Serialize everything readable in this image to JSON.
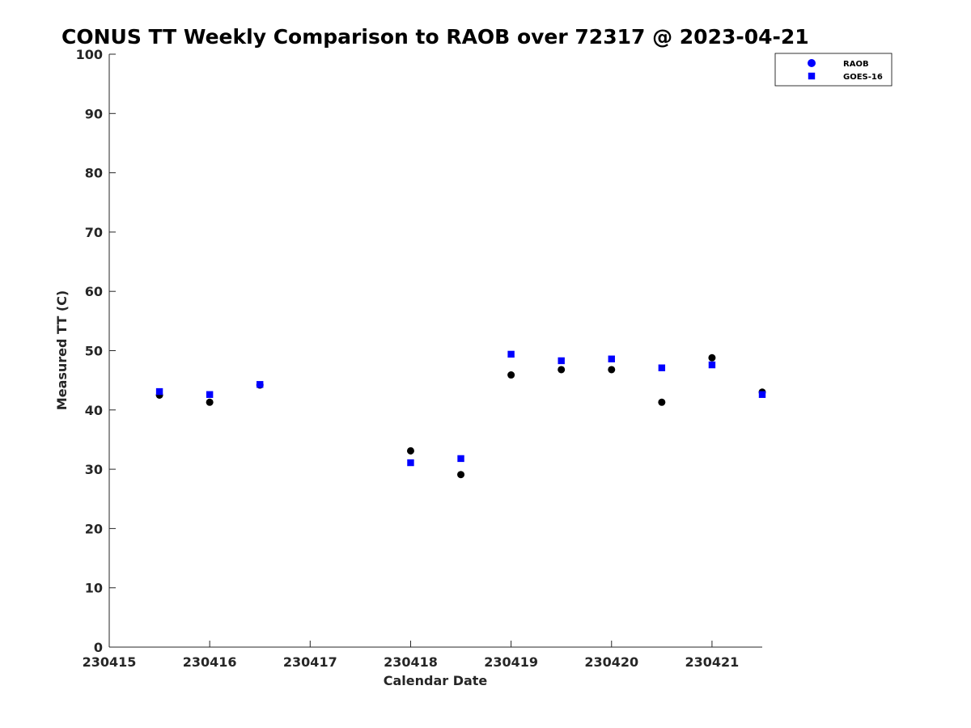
{
  "chart_data": {
    "type": "scatter",
    "title": "CONUS TT Weekly Comparison to RAOB over 72317 @ 2023-04-21",
    "xlabel": "Calendar Date",
    "ylabel": "Measured TT (C)",
    "x_ticks": [
      "230415",
      "230416",
      "230417",
      "230418",
      "230419",
      "230420",
      "230421"
    ],
    "y_ticks": [
      0,
      10,
      20,
      30,
      40,
      50,
      60,
      70,
      80,
      90,
      100
    ],
    "xlim": [
      "230415",
      "230421 12Z"
    ],
    "ylim": [
      0,
      100
    ],
    "grid": false,
    "legend_position": "top-right",
    "series": [
      {
        "name": "RAOB",
        "marker": "circle",
        "color": "#000000",
        "legend_color": "#0000ff",
        "points": [
          {
            "x": "230415 12Z",
            "y": 42.5
          },
          {
            "x": "230416 00Z",
            "y": 41.3
          },
          {
            "x": "230416 12Z",
            "y": 44.2
          },
          {
            "x": "230418 00Z",
            "y": 33.1
          },
          {
            "x": "230418 12Z",
            "y": 29.1
          },
          {
            "x": "230419 00Z",
            "y": 45.9
          },
          {
            "x": "230419 12Z",
            "y": 46.8
          },
          {
            "x": "230420 00Z",
            "y": 46.8
          },
          {
            "x": "230420 12Z",
            "y": 41.3
          },
          {
            "x": "230421 00Z",
            "y": 48.8
          },
          {
            "x": "230421 12Z",
            "y": 43.0
          }
        ]
      },
      {
        "name": "GOES-16",
        "marker": "square",
        "color": "#0000ff",
        "points": [
          {
            "x": "230415 12Z",
            "y": 43.1
          },
          {
            "x": "230416 00Z",
            "y": 42.6
          },
          {
            "x": "230416 12Z",
            "y": 44.3
          },
          {
            "x": "230418 00Z",
            "y": 31.1
          },
          {
            "x": "230418 12Z",
            "y": 31.8
          },
          {
            "x": "230419 00Z",
            "y": 49.4
          },
          {
            "x": "230419 12Z",
            "y": 48.3
          },
          {
            "x": "230420 00Z",
            "y": 48.6
          },
          {
            "x": "230420 12Z",
            "y": 47.1
          },
          {
            "x": "230421 00Z",
            "y": 47.6
          },
          {
            "x": "230421 12Z",
            "y": 42.6
          }
        ]
      }
    ]
  }
}
